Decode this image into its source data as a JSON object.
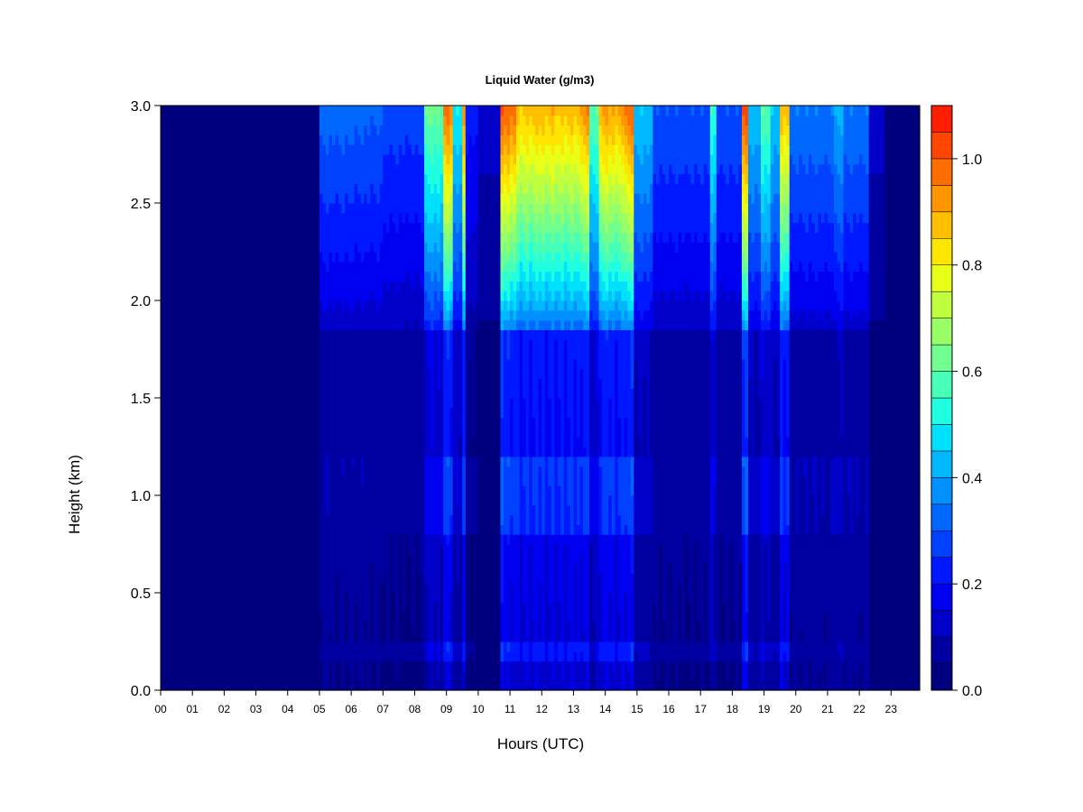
{
  "chart_data": {
    "type": "heatmap",
    "title": "Liquid Water (g/m3)",
    "xlabel": "Hours (UTC)",
    "ylabel": "Height (km)",
    "xlim": [
      0,
      23.9
    ],
    "ylim": [
      0,
      3
    ],
    "x_tick_labels": [
      "00",
      "01",
      "02",
      "03",
      "04",
      "05",
      "06",
      "07",
      "08",
      "09",
      "10",
      "11",
      "12",
      "13",
      "14",
      "15",
      "16",
      "17",
      "18",
      "19",
      "20",
      "21",
      "22",
      "23"
    ],
    "y_tick_labels": [
      "0.0",
      "0.5",
      "1.0",
      "1.5",
      "2.0",
      "2.5",
      "3.0"
    ],
    "y_tick_values": [
      0,
      0.5,
      1.0,
      1.5,
      2.0,
      2.5,
      3.0
    ],
    "colorbar": {
      "min": 0,
      "max": 1.1,
      "step": 0.05,
      "tick_labels": [
        "0.0",
        "0.2",
        "0.4",
        "0.6",
        "0.8",
        "1.0"
      ],
      "tick_values": [
        0,
        0.2,
        0.4,
        0.6,
        0.8,
        1.0
      ],
      "colors": [
        "#00007F",
        "#0000A0",
        "#0000C8",
        "#0000F0",
        "#0018FF",
        "#0040FF",
        "#0068FF",
        "#0090FF",
        "#00B8FF",
        "#00E0FF",
        "#20FFDF",
        "#48FFB7",
        "#70FF8F",
        "#98FF67",
        "#C0FF3F",
        "#E8FF17",
        "#FFE600",
        "#FFBE00",
        "#FF9600",
        "#FF6E00",
        "#FF4600",
        "#FF1E00",
        "#E00000",
        "#7F0000"
      ]
    },
    "intensity_segments": [
      {
        "start": 0.0,
        "end": 5.0,
        "top": 0.0
      },
      {
        "start": 5.0,
        "end": 6.0,
        "top": 0.33
      },
      {
        "start": 6.0,
        "end": 7.0,
        "top": 0.32
      },
      {
        "start": 7.0,
        "end": 8.3,
        "top": 0.28
      },
      {
        "start": 8.3,
        "end": 8.9,
        "top": 0.62
      },
      {
        "start": 8.9,
        "end": 9.2,
        "top": 0.98
      },
      {
        "start": 9.2,
        "end": 9.5,
        "top": 0.5
      },
      {
        "start": 9.5,
        "end": 9.6,
        "top": 0.95
      },
      {
        "start": 9.6,
        "end": 10.0,
        "top": 0.22
      },
      {
        "start": 10.0,
        "end": 10.7,
        "top": 0.12
      },
      {
        "start": 10.7,
        "end": 11.2,
        "top": 1.0
      },
      {
        "start": 11.2,
        "end": 11.9,
        "top": 0.88
      },
      {
        "start": 11.9,
        "end": 12.5,
        "top": 0.9
      },
      {
        "start": 12.5,
        "end": 13.2,
        "top": 0.88
      },
      {
        "start": 13.2,
        "end": 13.5,
        "top": 0.95
      },
      {
        "start": 13.5,
        "end": 13.8,
        "top": 0.6
      },
      {
        "start": 13.8,
        "end": 14.6,
        "top": 0.92
      },
      {
        "start": 14.6,
        "end": 14.9,
        "top": 0.99
      },
      {
        "start": 14.9,
        "end": 15.5,
        "top": 0.45
      },
      {
        "start": 15.5,
        "end": 17.3,
        "top": 0.3
      },
      {
        "start": 17.3,
        "end": 17.5,
        "top": 0.55
      },
      {
        "start": 17.5,
        "end": 18.3,
        "top": 0.3
      },
      {
        "start": 18.3,
        "end": 18.5,
        "top": 1.02
      },
      {
        "start": 18.5,
        "end": 18.9,
        "top": 0.45
      },
      {
        "start": 18.9,
        "end": 19.2,
        "top": 0.6
      },
      {
        "start": 19.2,
        "end": 19.5,
        "top": 0.45
      },
      {
        "start": 19.5,
        "end": 19.8,
        "top": 0.88
      },
      {
        "start": 19.8,
        "end": 21.2,
        "top": 0.35
      },
      {
        "start": 21.2,
        "end": 21.5,
        "top": 0.42
      },
      {
        "start": 21.5,
        "end": 22.3,
        "top": 0.35
      },
      {
        "start": 22.3,
        "end": 22.8,
        "top": 0.12
      },
      {
        "start": 22.8,
        "end": 22.85,
        "top": 0.6
      },
      {
        "start": 22.85,
        "end": 23.9,
        "top": 0.05
      }
    ]
  }
}
